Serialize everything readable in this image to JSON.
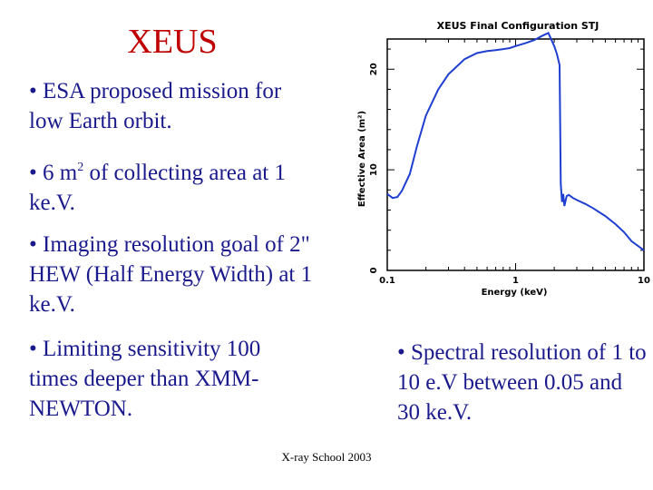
{
  "slide": {
    "title": "XEUS",
    "footer": "X-ray School 2003",
    "bullets": [
      {
        "id": "b1",
        "text": "• ESA proposed mission for low Earth orbit."
      },
      {
        "id": "b2",
        "pre": "• 6 m",
        "sup": "2",
        "post": " of collecting area at 1 ke.V."
      },
      {
        "id": "b3",
        "text": "• Imaging resolution goal of 2\" HEW (Half Energy Width) at 1 ke.V."
      },
      {
        "id": "b4",
        "text": "• Limiting sensitivity 100 times deeper than XMM-NEWTON."
      },
      {
        "id": "b5",
        "text": "• Spectral resolution of 1 to 10 e.V between 0.05 and 30 ke.V."
      }
    ],
    "colors": {
      "title": "#c00000",
      "text": "#1a1a8c",
      "curve": "#1f3fd0"
    }
  },
  "chart_data": {
    "type": "line",
    "title": "XEUS Final Configuration STJ",
    "xlabel": "Energy (keV)",
    "ylabel": "Effective Area (m²)",
    "xscale": "log",
    "xlim": [
      0.1,
      10
    ],
    "ylim": [
      0,
      23
    ],
    "xticks": [
      "0.1",
      "1",
      "10"
    ],
    "yticks": [
      "0",
      "10",
      "20"
    ],
    "grid": false,
    "series": [
      {
        "x": [
          0.1,
          0.11,
          0.12,
          0.13,
          0.15,
          0.17,
          0.2,
          0.25,
          0.3,
          0.4,
          0.5,
          0.6,
          0.7,
          0.8,
          0.9,
          1.0,
          1.2,
          1.4,
          1.6,
          1.8,
          2.0,
          2.1,
          2.2,
          2.25,
          2.3,
          2.35,
          2.4,
          2.5,
          2.6,
          2.8,
          3.0,
          3.5,
          4.0,
          5.0,
          6.0,
          7.0,
          8.0,
          10.0
        ],
        "y": [
          7.6,
          7.2,
          7.3,
          7.9,
          9.6,
          12.3,
          15.4,
          18.0,
          19.5,
          21.0,
          21.6,
          21.8,
          21.9,
          22.0,
          22.1,
          22.3,
          22.6,
          22.9,
          23.3,
          23.6,
          22.3,
          21.5,
          20.4,
          8.6,
          6.8,
          7.6,
          6.4,
          7.4,
          7.5,
          7.2,
          7.0,
          6.6,
          6.2,
          5.4,
          4.6,
          3.8,
          2.9,
          2.0
        ]
      }
    ]
  }
}
